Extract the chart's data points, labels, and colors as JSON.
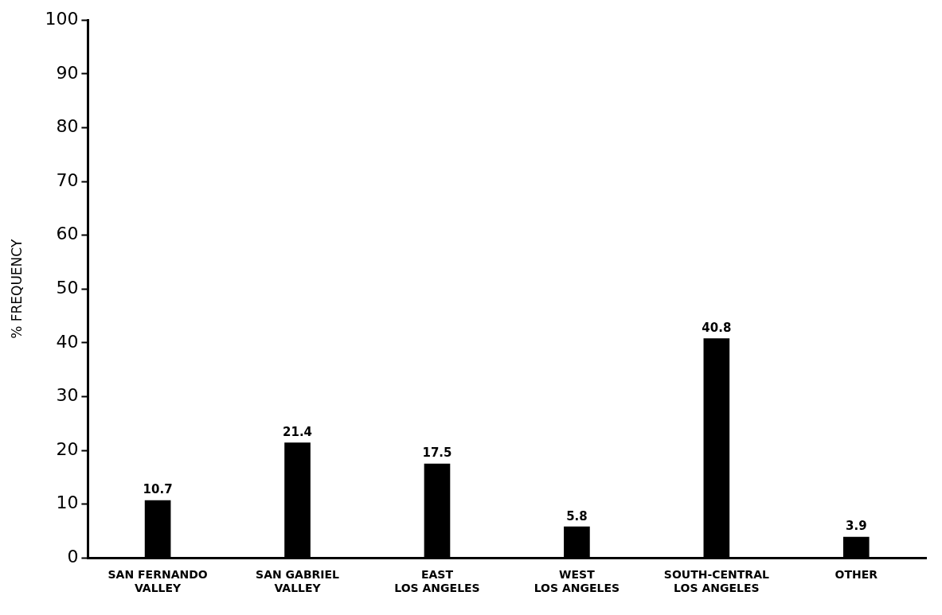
{
  "chart_data": {
    "type": "bar",
    "ylabel": "% FREQUENCY",
    "categories": [
      "SAN FERNANDO\nVALLEY",
      "SAN GABRIEL\nVALLEY",
      "EAST\nLOS ANGELES",
      "WEST\nLOS ANGELES",
      "SOUTH-CENTRAL\nLOS ANGELES",
      "OTHER"
    ],
    "values": [
      10.7,
      21.4,
      17.5,
      5.8,
      40.8,
      3.9
    ],
    "data_labels": true,
    "color": "#000000",
    "ylim": [
      0,
      100
    ],
    "yticks": [
      0,
      10,
      20,
      30,
      40,
      50,
      60,
      70,
      80,
      90,
      100
    ],
    "grid": false,
    "legend": false
  }
}
